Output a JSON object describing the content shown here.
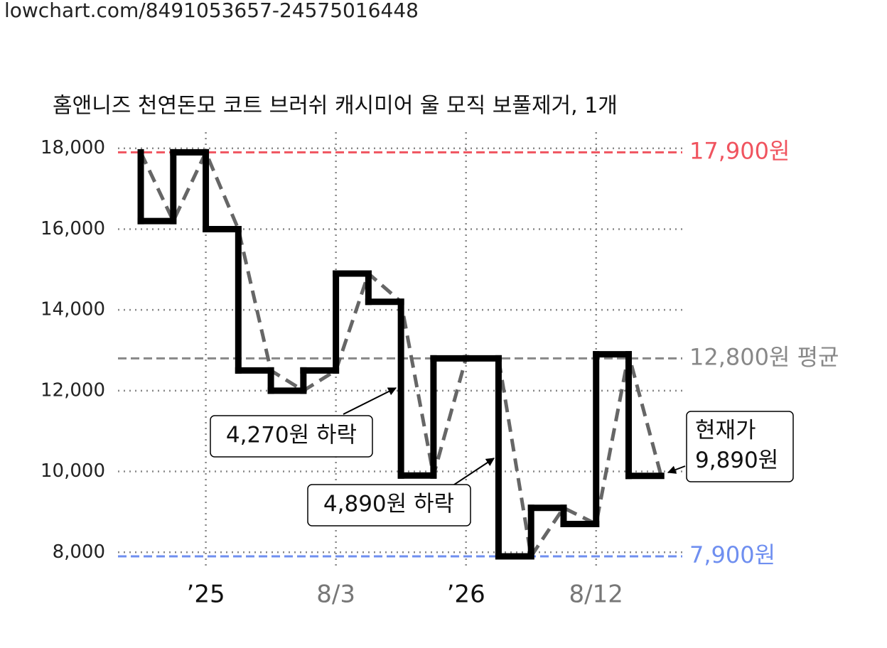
{
  "header": {
    "url": "lowchart.com/8491053657-24575016448"
  },
  "chart_data": {
    "type": "step",
    "title": "홈앤니즈 천연돈모 코트 브러쉬 캐시미어 울 모직 보풀제거, 1개",
    "x": [
      0,
      1,
      2,
      3,
      4,
      5,
      6,
      7,
      8,
      9,
      10,
      11,
      12,
      13,
      14,
      15,
      16
    ],
    "series": [
      {
        "color": "#000000",
        "trend_color": "#666666",
        "values": [
          17900,
          16200,
          17900,
          16000,
          12500,
          12000,
          12500,
          14900,
          14200,
          9900,
          12800,
          12800,
          7900,
          9100,
          8700,
          12900,
          9890
        ]
      }
    ],
    "xlim": [
      -0.7,
      16.65
    ],
    "xticks": [
      {
        "value": 2,
        "label": "’25"
      },
      {
        "value": 6,
        "label": "8/3"
      },
      {
        "value": 10,
        "label": "’26"
      },
      {
        "value": 14,
        "label": "8/12"
      }
    ],
    "ylim": [
      7600,
      18400
    ],
    "yticks": [
      {
        "value": 8000,
        "label": "8,000"
      },
      {
        "value": 10000,
        "label": "10,000"
      },
      {
        "value": 12000,
        "label": "12,000"
      },
      {
        "value": 14000,
        "label": "14,000"
      },
      {
        "value": 16000,
        "label": "16,000"
      },
      {
        "value": 18000,
        "label": "18,000"
      }
    ],
    "grid": true,
    "reference_lines": [
      {
        "value": 17900,
        "label": "17,900원",
        "color": "#f0545f"
      },
      {
        "value": 12800,
        "label": "12,800원 평균",
        "color": "#888888"
      },
      {
        "value": 7900,
        "label": "7,900원",
        "color": "#6f8ff0"
      }
    ],
    "annotations": [
      {
        "lines": [
          "4,270원 하락"
        ]
      },
      {
        "lines": [
          "4,890원 하락"
        ]
      },
      {
        "lines": [
          "현재가",
          "9,890원"
        ]
      }
    ]
  }
}
